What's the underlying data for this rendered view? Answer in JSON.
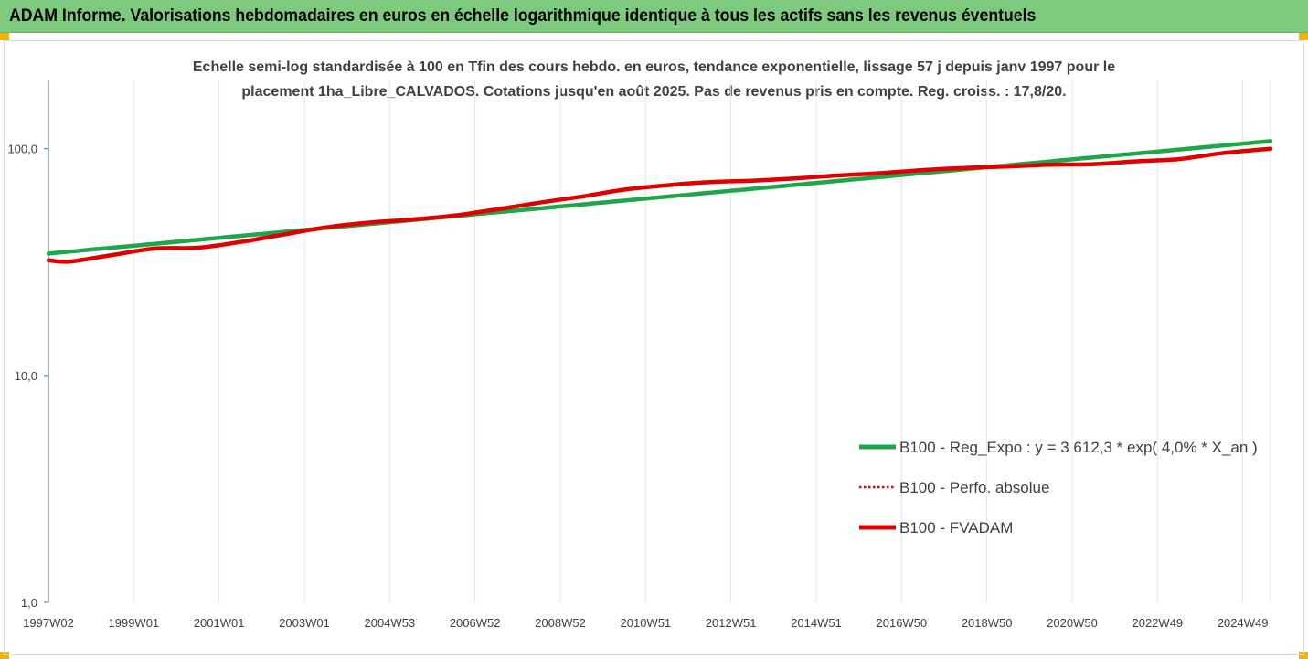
{
  "header": {
    "title": "ADAM Informe. Valorisations hebdomadaires en euros en échelle logarithmique identique à tous les actifs sans les revenus éventuels"
  },
  "colors": {
    "header_bg": "#7dc97e",
    "accent_corner": "#f0b400",
    "reg_expo": "#1fa64a",
    "perfo_absolue": "#e00000",
    "fvadam": "#e00000"
  },
  "chart_data": {
    "type": "line",
    "title_line1": "Echelle semi-log standardisée à 100 en Tfin des cours hebdo. en euros, tendance exponentielle, lissage 57 j depuis janv 1997 pour le",
    "title_line2": "placement 1ha_Libre_CALVADOS. Cotations jusqu'en août 2025. Pas de revenus pris en compte. Reg. croiss. : 17,8/20.",
    "y_scale": "log",
    "ylim": [
      1,
      200
    ],
    "y_ticks": [
      {
        "value": 1,
        "label": "1,0"
      },
      {
        "value": 10,
        "label": "10,0"
      },
      {
        "value": 100,
        "label": "100,0"
      }
    ],
    "xlim": [
      1997.0,
      2025.65
    ],
    "x_ticks": [
      {
        "t": 1997.0,
        "label": "1997W02"
      },
      {
        "t": 1999.0,
        "label": "1999W01"
      },
      {
        "t": 2001.0,
        "label": "2001W01"
      },
      {
        "t": 2003.0,
        "label": "2003W01"
      },
      {
        "t": 2005.0,
        "label": "2004W53"
      },
      {
        "t": 2007.0,
        "label": "2006W52"
      },
      {
        "t": 2009.0,
        "label": "2008W52"
      },
      {
        "t": 2011.0,
        "label": "2010W51"
      },
      {
        "t": 2013.0,
        "label": "2012W51"
      },
      {
        "t": 2015.0,
        "label": "2014W51"
      },
      {
        "t": 2017.0,
        "label": "2016W50"
      },
      {
        "t": 2019.0,
        "label": "2018W50"
      },
      {
        "t": 2021.0,
        "label": "2020W50"
      },
      {
        "t": 2023.0,
        "label": "2022W49"
      },
      {
        "t": 2025.0,
        "label": "2024W49"
      }
    ],
    "grid": "vertical",
    "legend_position": "bottom-right",
    "series": [
      {
        "name": "B100 - Reg_Expo : y = 3 612,3 * exp( 4,0% *  X_an )",
        "style": "solid-thick",
        "x": [
          1997.0,
          2000.0,
          2003.0,
          2006.0,
          2009.0,
          2012.0,
          2015.0,
          2018.0,
          2021.0,
          2024.0,
          2025.65
        ],
        "y": [
          34.5,
          38.7,
          43.6,
          49.0,
          55.1,
          62.0,
          69.8,
          78.6,
          88.4,
          99.5,
          108.0
        ]
      },
      {
        "name": "B100 - Perfo. absolue",
        "style": "dotted",
        "x": [
          1997.0,
          1997.5,
          1998.5,
          1999.5,
          2000.5,
          2001.5,
          2002.5,
          2003.5,
          2004.5,
          2005.5,
          2006.5,
          2007.5,
          2008.5,
          2009.5,
          2010.5,
          2011.5,
          2012.5,
          2013.5,
          2014.5,
          2015.5,
          2016.5,
          2017.5,
          2018.5,
          2019.5,
          2020.5,
          2021.5,
          2022.5,
          2023.5,
          2024.5,
          2025.65
        ],
        "y": [
          32.2,
          31.8,
          34.0,
          36.3,
          36.6,
          38.8,
          41.8,
          45.0,
          47.2,
          48.7,
          50.7,
          54.0,
          57.8,
          61.5,
          66.0,
          69.0,
          71.3,
          72.3,
          74.0,
          76.2,
          78.0,
          80.5,
          82.3,
          83.5,
          85.0,
          85.5,
          88.0,
          90.0,
          95.5,
          100.0
        ]
      },
      {
        "name": "B100 - FVADAM",
        "style": "solid-thick",
        "x": [
          1997.0,
          1997.5,
          1998.5,
          1999.5,
          2000.5,
          2001.5,
          2002.5,
          2003.5,
          2004.5,
          2005.5,
          2006.5,
          2007.5,
          2008.5,
          2009.5,
          2010.5,
          2011.5,
          2012.5,
          2013.5,
          2014.5,
          2015.5,
          2016.5,
          2017.5,
          2018.5,
          2019.5,
          2020.5,
          2021.5,
          2022.5,
          2023.5,
          2024.5,
          2025.65
        ],
        "y": [
          32.2,
          31.8,
          34.0,
          36.3,
          36.6,
          38.8,
          41.8,
          45.0,
          47.2,
          48.7,
          50.7,
          54.0,
          57.8,
          61.5,
          66.0,
          69.0,
          71.3,
          72.3,
          74.0,
          76.2,
          78.0,
          80.5,
          82.3,
          83.5,
          85.0,
          85.5,
          88.0,
          90.0,
          95.5,
          100.0
        ]
      }
    ]
  }
}
